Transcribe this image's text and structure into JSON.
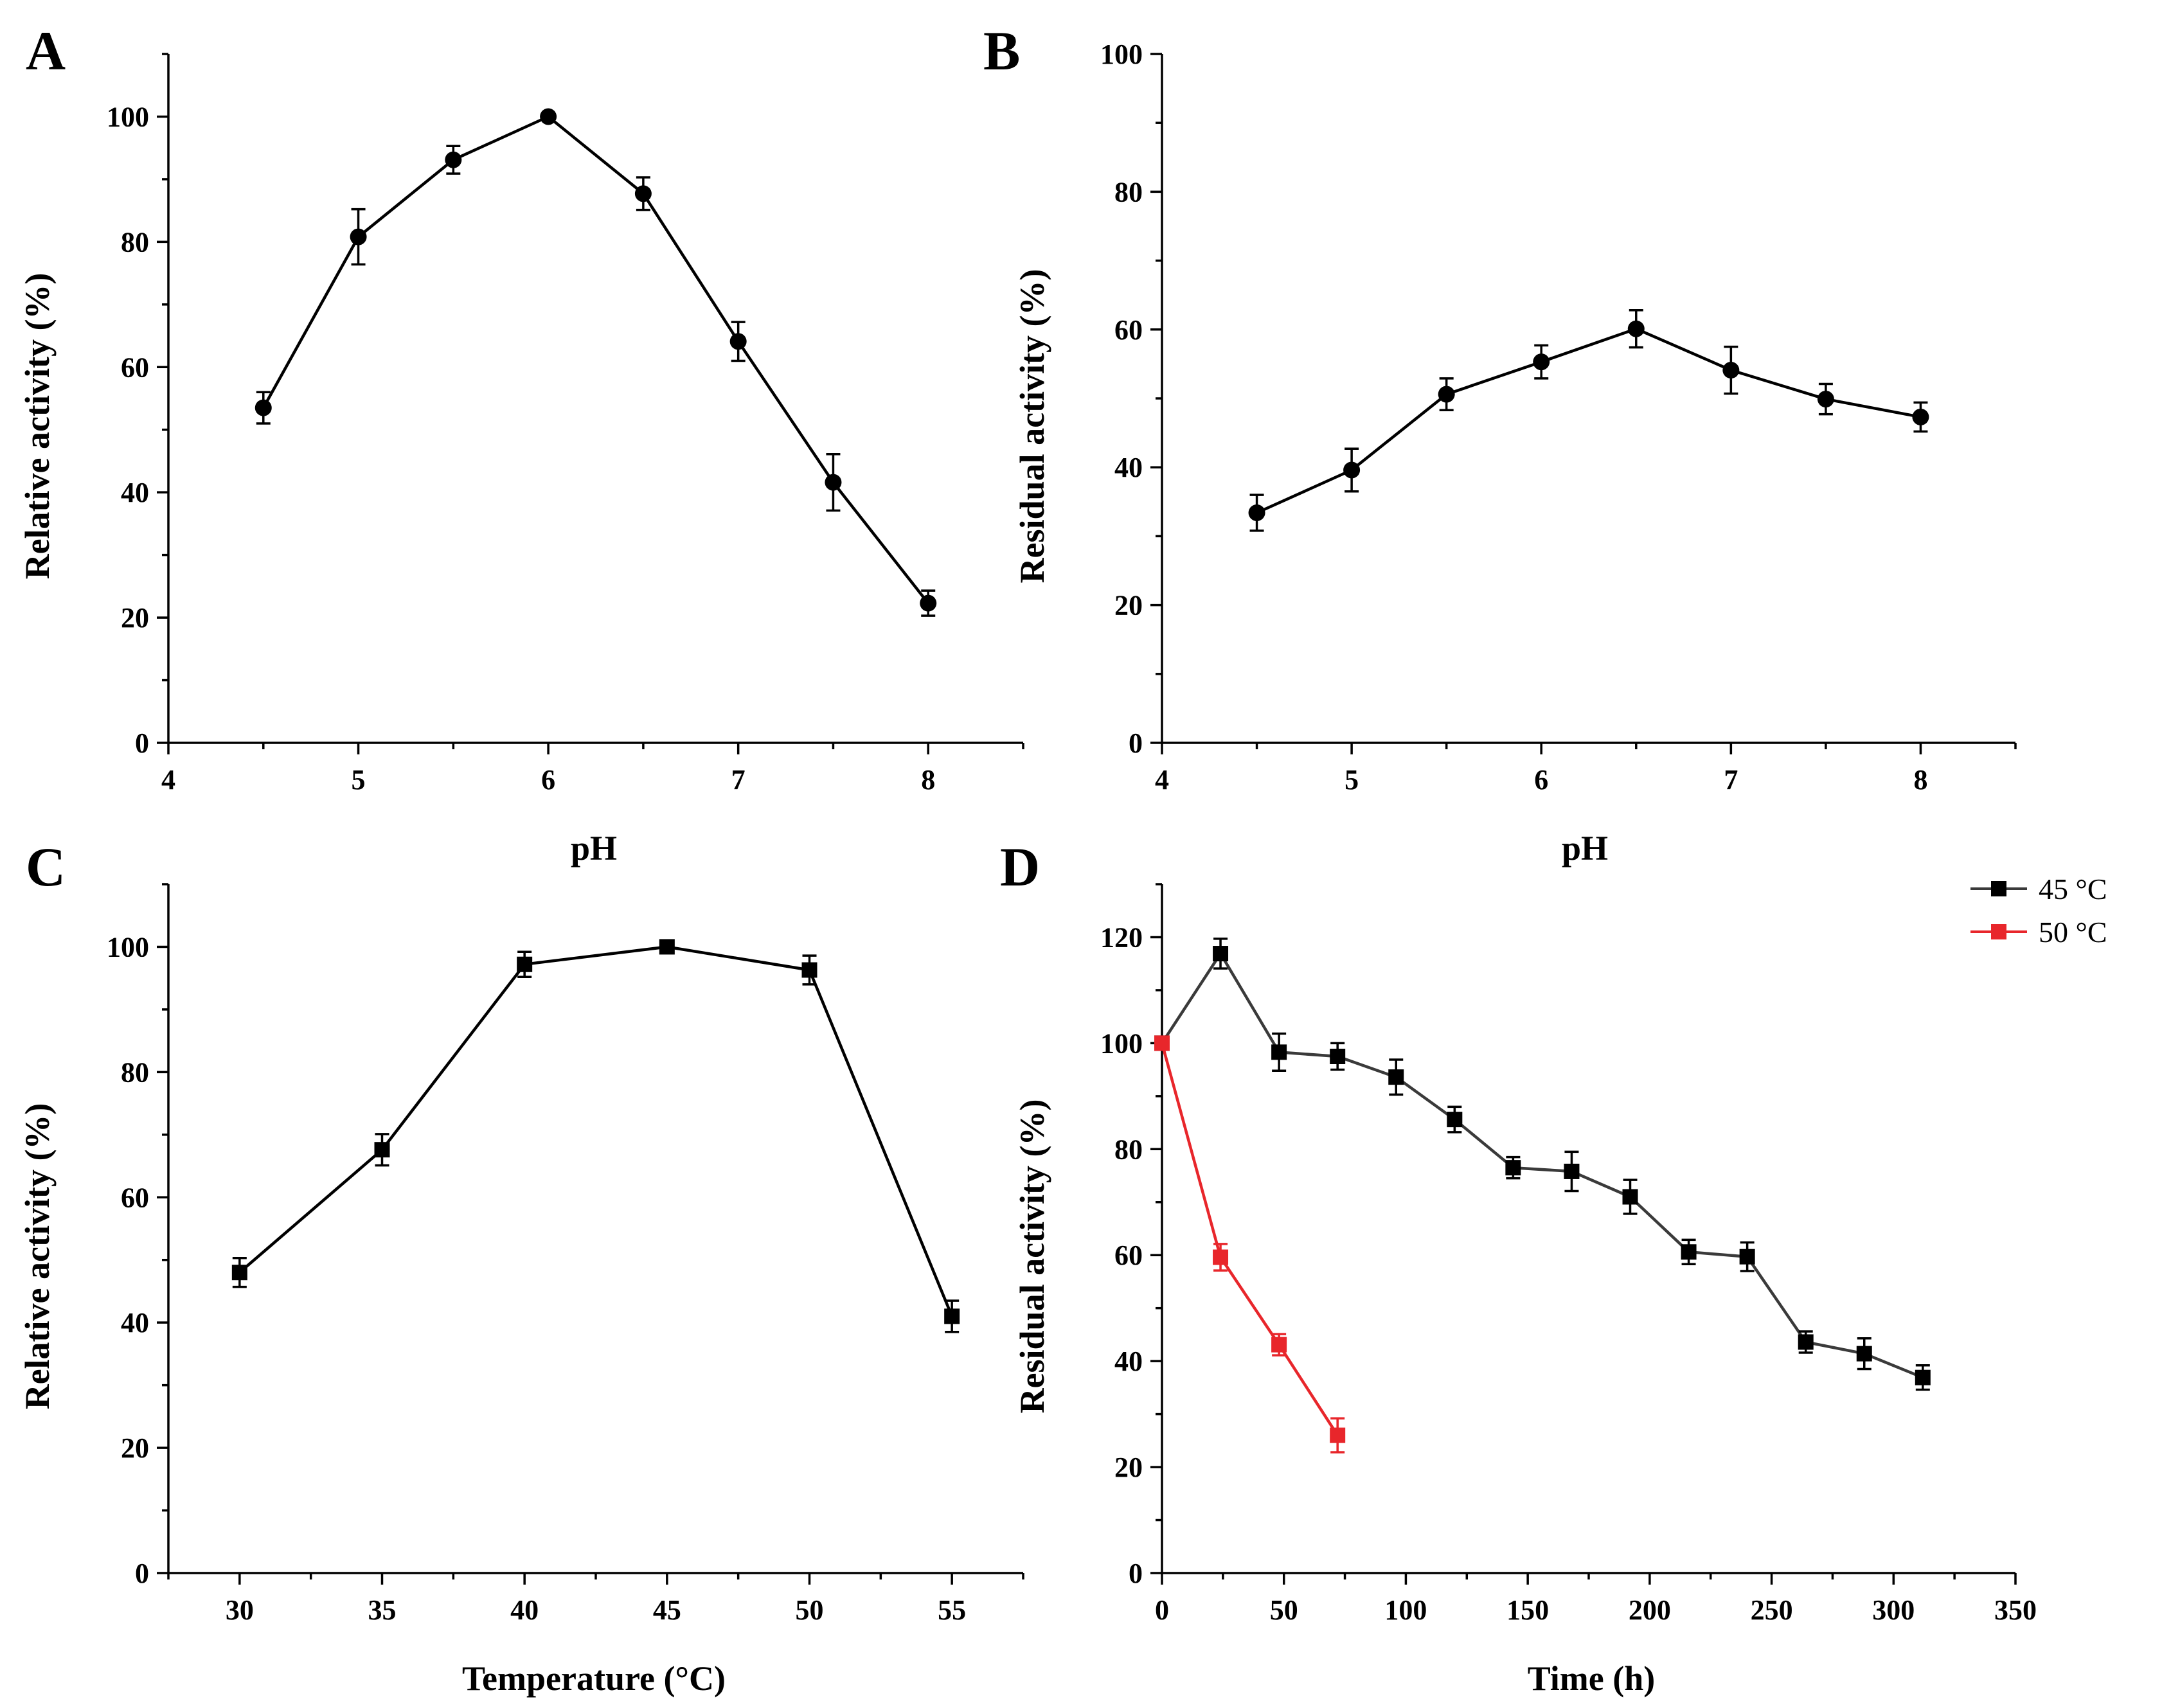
{
  "chart_data": [
    {
      "panel": "A",
      "type": "line",
      "xlabel": "pH",
      "ylabel": "Relative activity (%)",
      "xlim": [
        4,
        8.5
      ],
      "ylim": [
        0,
        110
      ],
      "xticks": [
        4,
        5,
        6,
        7,
        8
      ],
      "yticks": [
        0,
        20,
        40,
        60,
        80,
        100
      ],
      "grid": false,
      "series": [
        {
          "name": "",
          "marker": "circle",
          "color": "#000000",
          "x": [
            4.5,
            5.0,
            5.5,
            6.0,
            6.5,
            7.0,
            7.5,
            8.0
          ],
          "y": [
            53.5,
            80.8,
            93.1,
            100.0,
            87.7,
            64.1,
            41.6,
            22.3
          ],
          "err": [
            2.5,
            4.4,
            2.2,
            0.0,
            2.6,
            3.1,
            4.5,
            2.0
          ]
        }
      ]
    },
    {
      "panel": "B",
      "type": "line",
      "xlabel": "pH",
      "ylabel": "Residual activity (%)",
      "xlim": [
        4,
        8.5
      ],
      "ylim": [
        0,
        100
      ],
      "xticks": [
        4,
        5,
        6,
        7,
        8
      ],
      "yticks": [
        0,
        20,
        40,
        60,
        80,
        100
      ],
      "grid": false,
      "series": [
        {
          "name": "",
          "marker": "circle",
          "color": "#000000",
          "x": [
            4.5,
            5.0,
            5.5,
            6.0,
            6.5,
            7.0,
            7.5,
            8.0
          ],
          "y": [
            33.4,
            39.6,
            50.6,
            55.3,
            60.1,
            54.1,
            49.9,
            47.3
          ],
          "err": [
            2.6,
            3.1,
            2.3,
            2.4,
            2.7,
            3.4,
            2.2,
            2.1
          ]
        }
      ]
    },
    {
      "panel": "C",
      "type": "line",
      "xlabel": "Temperature (°C)",
      "ylabel": "Relative activity (%)",
      "xlim": [
        27.5,
        57.5
      ],
      "ylim": [
        0,
        110
      ],
      "xticks": [
        30,
        35,
        40,
        45,
        50,
        55
      ],
      "yticks": [
        0,
        20,
        40,
        60,
        80,
        100
      ],
      "grid": false,
      "series": [
        {
          "name": "",
          "marker": "square",
          "color": "#000000",
          "x": [
            30,
            35,
            40,
            45,
            50,
            55
          ],
          "y": [
            48.0,
            67.6,
            97.2,
            100.0,
            96.3,
            41.0
          ],
          "err": [
            2.3,
            2.5,
            2.0,
            0.0,
            2.3,
            2.5
          ]
        }
      ]
    },
    {
      "panel": "D",
      "type": "line",
      "xlabel": "Time (h)",
      "ylabel": "Residual activity (%)",
      "xlim": [
        0,
        350
      ],
      "ylim": [
        0,
        130
      ],
      "xticks": [
        0,
        50,
        100,
        150,
        200,
        250,
        300,
        350
      ],
      "yticks": [
        0,
        20,
        40,
        60,
        80,
        100,
        120
      ],
      "grid": false,
      "legend": "top-right",
      "series": [
        {
          "name": "45 °C",
          "marker": "square",
          "color": "#3a3a3a",
          "marker_color": "#000000",
          "x": [
            0,
            24,
            48,
            72,
            96,
            120,
            144,
            168,
            192,
            216,
            240,
            264,
            288,
            312
          ],
          "y": [
            100.0,
            116.9,
            98.3,
            97.5,
            93.6,
            85.6,
            76.5,
            75.8,
            71.0,
            60.6,
            59.7,
            43.6,
            41.4,
            36.9
          ],
          "err": [
            0.0,
            2.8,
            3.5,
            2.5,
            3.3,
            2.4,
            2.0,
            3.7,
            3.2,
            2.3,
            2.7,
            2.0,
            2.9,
            2.3
          ]
        },
        {
          "name": "50 °C",
          "marker": "square",
          "color": "#e8262b",
          "marker_color": "#e8262b",
          "x": [
            0,
            24,
            48,
            72
          ],
          "y": [
            100.0,
            59.6,
            43.1,
            26.0
          ],
          "err": [
            0.0,
            2.5,
            2.0,
            3.2
          ]
        }
      ]
    }
  ]
}
